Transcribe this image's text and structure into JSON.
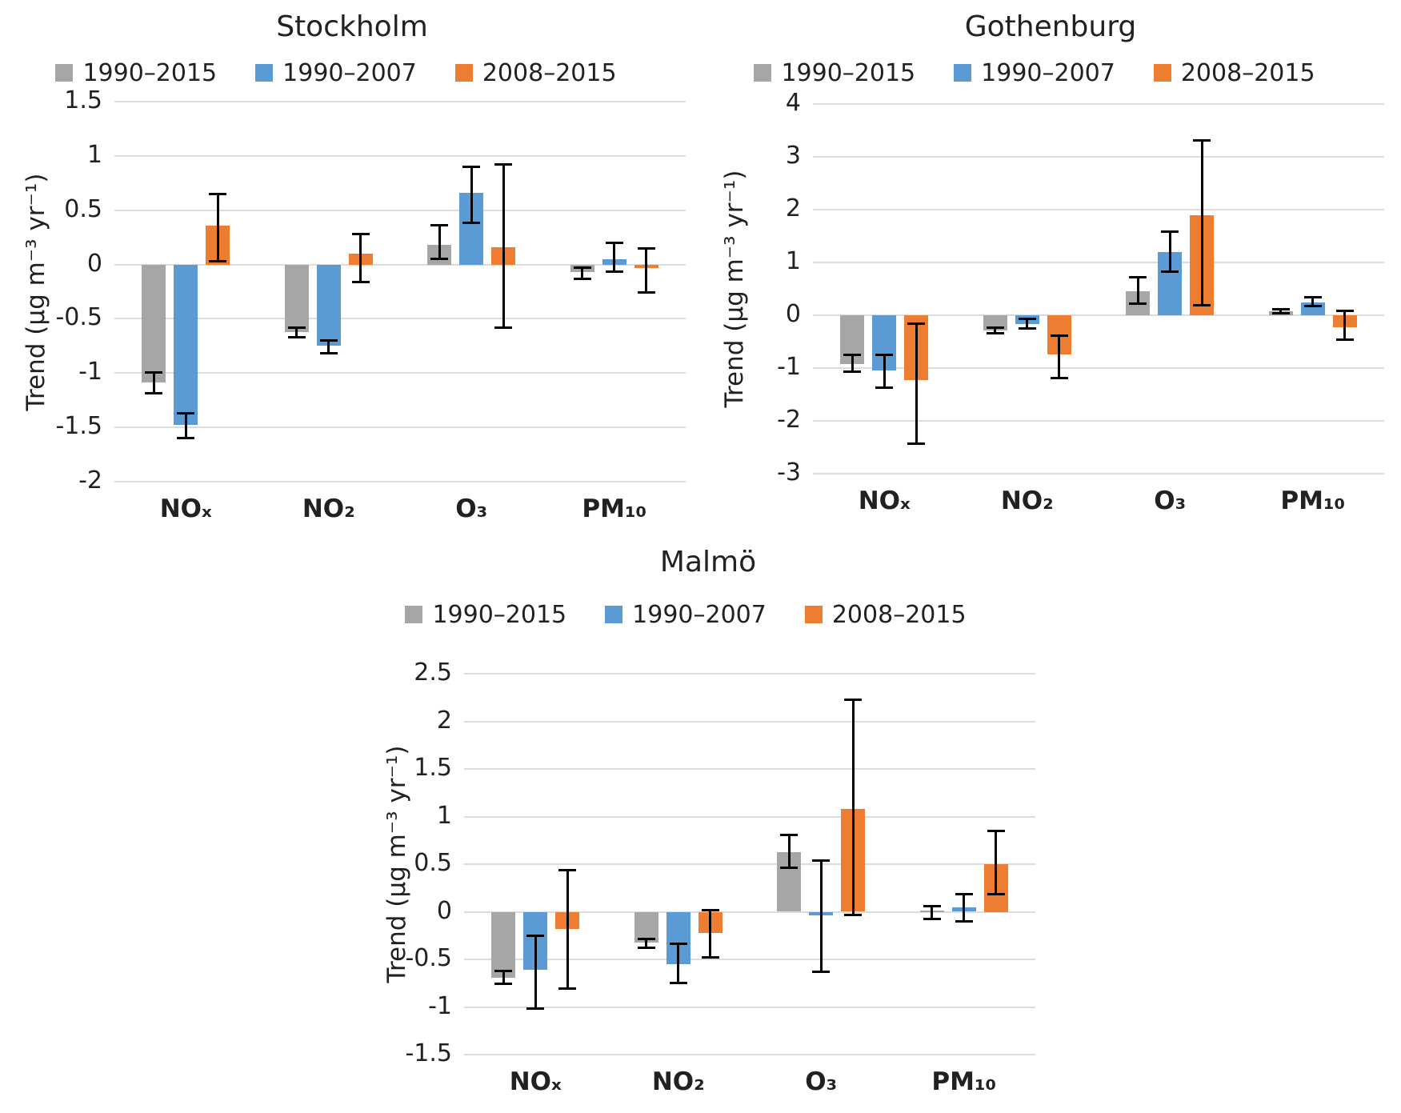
{
  "figure": {
    "background": "#FFFFFF",
    "gridline_color": "#DCDCDC",
    "error_bar_color": "#000000",
    "text_color": "#212121"
  },
  "chart_data": [
    {
      "type": "bar",
      "title": "Stockholm",
      "ylabel": "Trend (μg m⁻³ yr⁻¹)",
      "categories": [
        "NOₓ",
        "NO₂",
        "O₃",
        "PM₁₀"
      ],
      "ylim": [
        -2,
        1.5
      ],
      "yticks": [
        "1.5",
        "1",
        "0.5",
        "0",
        "-0.5",
        "-1",
        "-1.5",
        "-2"
      ],
      "grid": true,
      "legend_position": "top",
      "error_bars": true,
      "series": [
        {
          "name": "1990–2015",
          "color": "#A6A6A6",
          "values": [
            -1.09,
            -0.62,
            0.18,
            -0.07
          ],
          "error_low": [
            -1.2,
            -0.68,
            0.04,
            -0.14
          ],
          "error_high": [
            -0.98,
            -0.57,
            0.37,
            -0.02
          ]
        },
        {
          "name": "1990–2007",
          "color": "#5B9BD5",
          "values": [
            -1.48,
            -0.75,
            0.66,
            0.05
          ],
          "error_low": [
            -1.61,
            -0.83,
            0.37,
            -0.08
          ],
          "error_high": [
            -1.36,
            -0.69,
            0.91,
            0.21
          ]
        },
        {
          "name": "2008–2015",
          "color": "#ED7D31",
          "values": [
            0.36,
            0.1,
            0.16,
            -0.03
          ],
          "error_low": [
            0.02,
            -0.17,
            -0.59,
            -0.27
          ],
          "error_high": [
            0.66,
            0.29,
            0.93,
            0.16
          ]
        }
      ]
    },
    {
      "type": "bar",
      "title": "Gothenburg",
      "ylabel": "Trend (μg m⁻³ yr⁻¹)",
      "categories": [
        "NOₓ",
        "NO₂",
        "O₃",
        "PM₁₀"
      ],
      "ylim": [
        -3,
        4
      ],
      "yticks": [
        "4",
        "3",
        "2",
        "1",
        "0",
        "-1",
        "-2",
        "-3"
      ],
      "grid": true,
      "legend_position": "top",
      "error_bars": true,
      "series": [
        {
          "name": "1990–2015",
          "color": "#A6A6A6",
          "values": [
            -0.92,
            -0.29,
            0.46,
            0.07
          ],
          "error_low": [
            -1.09,
            -0.36,
            0.2,
            0.01
          ],
          "error_high": [
            -0.73,
            -0.21,
            0.74,
            0.13
          ]
        },
        {
          "name": "1990–2007",
          "color": "#5B9BD5",
          "values": [
            -1.05,
            -0.16,
            1.2,
            0.25
          ],
          "error_low": [
            -1.39,
            -0.27,
            0.8,
            0.15
          ],
          "error_high": [
            -0.73,
            -0.05,
            1.61,
            0.36
          ]
        },
        {
          "name": "2008–2015",
          "color": "#ED7D31",
          "values": [
            -1.22,
            -0.74,
            1.9,
            -0.22
          ],
          "error_low": [
            -2.45,
            -1.21,
            0.17,
            -0.48
          ],
          "error_high": [
            -0.14,
            -0.36,
            3.33,
            0.11
          ]
        }
      ]
    },
    {
      "type": "bar",
      "title": "Malmö",
      "ylabel": "Trend (μg m⁻³ yr⁻¹)",
      "categories": [
        "NOₓ",
        "NO₂",
        "O₃",
        "PM₁₀"
      ],
      "ylim": [
        -1.5,
        2.5
      ],
      "yticks": [
        "2.5",
        "2",
        "1.5",
        "1",
        "0.5",
        "0",
        "-0.5",
        "-1",
        "-1.5"
      ],
      "grid": true,
      "legend_position": "top",
      "error_bars": true,
      "series": [
        {
          "name": "1990–2015",
          "color": "#A6A6A6",
          "values": [
            -0.69,
            -0.32,
            0.63,
            0.01
          ],
          "error_low": [
            -0.77,
            -0.39,
            0.45,
            -0.09
          ],
          "error_high": [
            -0.61,
            -0.27,
            0.82,
            0.07
          ]
        },
        {
          "name": "1990–2007",
          "color": "#5B9BD5",
          "values": [
            -0.61,
            -0.55,
            -0.04,
            0.05
          ],
          "error_low": [
            -1.03,
            -0.76,
            -0.64,
            -0.11
          ],
          "error_high": [
            -0.24,
            -0.32,
            0.55,
            0.2
          ]
        },
        {
          "name": "2008–2015",
          "color": "#ED7D31",
          "values": [
            -0.18,
            -0.22,
            1.08,
            0.5
          ],
          "error_low": [
            -0.82,
            -0.49,
            -0.05,
            0.17
          ],
          "error_high": [
            0.45,
            0.03,
            2.24,
            0.86
          ]
        }
      ]
    }
  ]
}
